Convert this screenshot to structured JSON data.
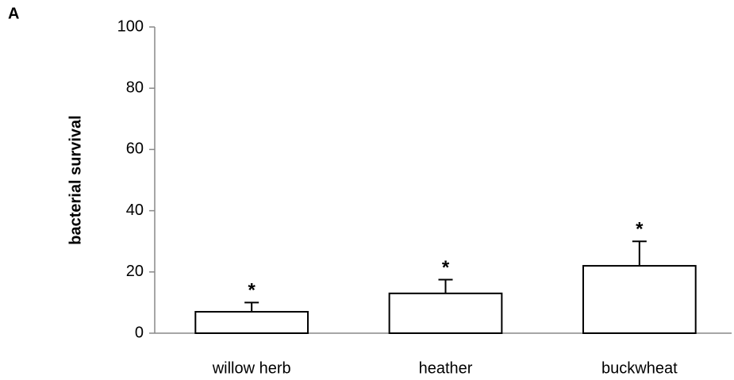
{
  "chart_data": {
    "type": "bar",
    "panel_label": "A",
    "ylabel": "bacterial survival",
    "categories": [
      "willow herb",
      "heather",
      "buckwheat"
    ],
    "values": [
      7,
      13,
      22
    ],
    "errors": [
      3,
      4.5,
      8
    ],
    "annotations": [
      "*",
      "*",
      "*"
    ],
    "color": "#ffffff",
    "edge_color": "#000000",
    "ylim": [
      0,
      100
    ],
    "yticks": [
      0,
      20,
      40,
      60,
      80,
      100
    ],
    "grid": false
  }
}
